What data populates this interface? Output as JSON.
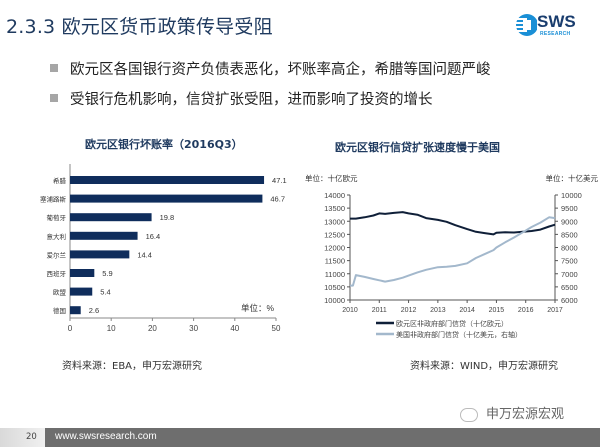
{
  "header": {
    "title": "2.3.3 欧元区货币政策传导受阻",
    "logo_main": "SWS",
    "logo_sub": "RESEARCH"
  },
  "bullets": [
    "欧元区各国银行资产负债表恶化，坏账率高企，希腊等国问题严峻",
    "受银行危机影响，信贷扩张受阻，进而影响了投资的增长"
  ],
  "chart_data": [
    {
      "type": "bar",
      "orientation": "horizontal",
      "title": "欧元区银行坏账率（2016Q3）",
      "categories": [
        "希腊",
        "塞浦路斯",
        "葡萄牙",
        "意大利",
        "爱尔兰",
        "西班牙",
        "欧盟",
        "德国"
      ],
      "values": [
        47.1,
        46.7,
        19.8,
        16.4,
        14.4,
        5.9,
        5.4,
        2.6
      ],
      "value_labels": [
        "47.1",
        "46.7",
        "19.8",
        "16.4",
        "14.4",
        "5.9",
        "5.4",
        "2.6"
      ],
      "xlim": [
        0,
        50
      ],
      "xticks": [
        "0",
        "10",
        "20",
        "30",
        "40",
        "50"
      ],
      "unit_label": "单位：%",
      "bar_color": "#0f2d5c",
      "source": "资料来源：EBA，申万宏源研究"
    },
    {
      "type": "line",
      "title": "欧元区银行信贷扩张速度慢于美国",
      "left_unit": "单位：十亿欧元",
      "right_unit": "单位：十亿美元",
      "x": [
        2010.0,
        2010.1,
        2010.2,
        2010.5,
        2010.8,
        2011.0,
        2011.2,
        2011.5,
        2011.8,
        2012.0,
        2012.3,
        2012.6,
        2013.0,
        2013.3,
        2013.6,
        2014.0,
        2014.3,
        2014.6,
        2014.9,
        2015.0,
        2015.3,
        2015.6,
        2015.9,
        2016.2,
        2016.5,
        2016.8,
        2017.0
      ],
      "series": [
        {
          "name": "欧元区非政府部门信贷（十亿欧元）",
          "axis": "left",
          "color": "#0f1f38",
          "values": [
            13100,
            13100,
            13100,
            13150,
            13220,
            13300,
            13280,
            13320,
            13350,
            13300,
            13250,
            13120,
            13050,
            12980,
            12850,
            12700,
            12600,
            12550,
            12500,
            12560,
            12580,
            12570,
            12600,
            12630,
            12680,
            12800,
            12870
          ]
        },
        {
          "name": "美国非政府部门信贷（十亿美元，右轴）",
          "axis": "right",
          "color": "#a3b8cc",
          "values": [
            6550,
            6550,
            6950,
            6880,
            6800,
            6750,
            6700,
            6760,
            6850,
            6930,
            7050,
            7150,
            7250,
            7270,
            7300,
            7400,
            7600,
            7750,
            7900,
            8000,
            8200,
            8380,
            8580,
            8780,
            8950,
            9150,
            9120
          ]
        }
      ],
      "ylim_left": [
        10000,
        14000
      ],
      "ylim_right": [
        6000,
        10000
      ],
      "yticks_left": [
        "14000",
        "13500",
        "13000",
        "12500",
        "12000",
        "11500",
        "11000",
        "10500",
        "10000"
      ],
      "yticks_right": [
        "10000",
        "9500",
        "9000",
        "8500",
        "8000",
        "7500",
        "7000",
        "6500",
        "6000"
      ],
      "xticks": [
        "2010",
        "2011",
        "2012",
        "2013",
        "2014",
        "2015",
        "2016",
        "2017"
      ],
      "legend_position": "bottom",
      "source": "资料来源：WIND，申万宏源研究"
    }
  ],
  "footer": {
    "page": "20",
    "url": "www.swsresearch.com",
    "wechat": "申万宏源宏观"
  }
}
